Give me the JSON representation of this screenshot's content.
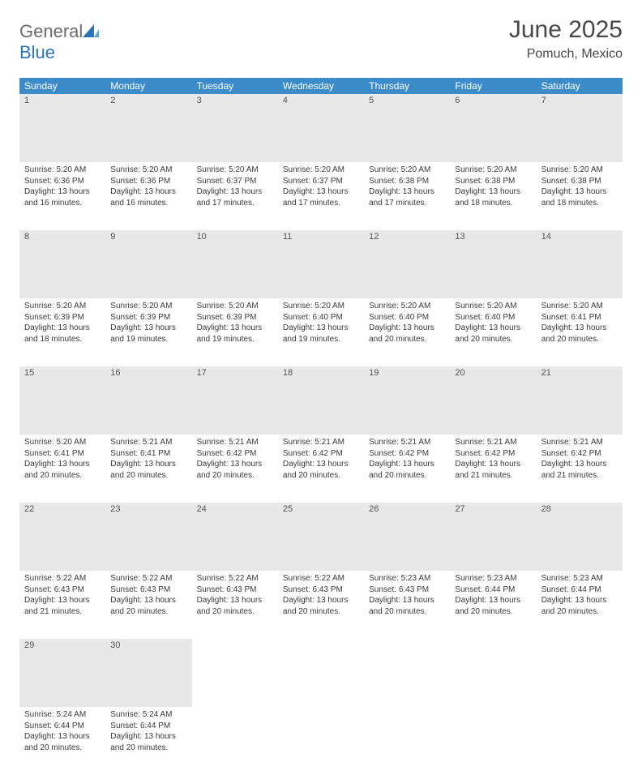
{
  "logo": {
    "general": "General",
    "blue": "Blue"
  },
  "title": "June 2025",
  "location": "Pomuch, Mexico",
  "header_color": "#3c8cc9",
  "accent_color": "#2a75bb",
  "daynum_bg": "#e8e8e8",
  "font_family": "Arial",
  "title_fontsize": 30,
  "location_fontsize": 16,
  "header_fontsize": 12,
  "body_fontsize": 10,
  "weekdays": [
    "Sunday",
    "Monday",
    "Tuesday",
    "Wednesday",
    "Thursday",
    "Friday",
    "Saturday"
  ],
  "weeks": [
    [
      {
        "n": "1",
        "sr": "Sunrise: 5:20 AM",
        "ss": "Sunset: 6:36 PM",
        "d1": "Daylight: 13 hours",
        "d2": "and 16 minutes."
      },
      {
        "n": "2",
        "sr": "Sunrise: 5:20 AM",
        "ss": "Sunset: 6:36 PM",
        "d1": "Daylight: 13 hours",
        "d2": "and 16 minutes."
      },
      {
        "n": "3",
        "sr": "Sunrise: 5:20 AM",
        "ss": "Sunset: 6:37 PM",
        "d1": "Daylight: 13 hours",
        "d2": "and 17 minutes."
      },
      {
        "n": "4",
        "sr": "Sunrise: 5:20 AM",
        "ss": "Sunset: 6:37 PM",
        "d1": "Daylight: 13 hours",
        "d2": "and 17 minutes."
      },
      {
        "n": "5",
        "sr": "Sunrise: 5:20 AM",
        "ss": "Sunset: 6:38 PM",
        "d1": "Daylight: 13 hours",
        "d2": "and 17 minutes."
      },
      {
        "n": "6",
        "sr": "Sunrise: 5:20 AM",
        "ss": "Sunset: 6:38 PM",
        "d1": "Daylight: 13 hours",
        "d2": "and 18 minutes."
      },
      {
        "n": "7",
        "sr": "Sunrise: 5:20 AM",
        "ss": "Sunset: 6:38 PM",
        "d1": "Daylight: 13 hours",
        "d2": "and 18 minutes."
      }
    ],
    [
      {
        "n": "8",
        "sr": "Sunrise: 5:20 AM",
        "ss": "Sunset: 6:39 PM",
        "d1": "Daylight: 13 hours",
        "d2": "and 18 minutes."
      },
      {
        "n": "9",
        "sr": "Sunrise: 5:20 AM",
        "ss": "Sunset: 6:39 PM",
        "d1": "Daylight: 13 hours",
        "d2": "and 19 minutes."
      },
      {
        "n": "10",
        "sr": "Sunrise: 5:20 AM",
        "ss": "Sunset: 6:39 PM",
        "d1": "Daylight: 13 hours",
        "d2": "and 19 minutes."
      },
      {
        "n": "11",
        "sr": "Sunrise: 5:20 AM",
        "ss": "Sunset: 6:40 PM",
        "d1": "Daylight: 13 hours",
        "d2": "and 19 minutes."
      },
      {
        "n": "12",
        "sr": "Sunrise: 5:20 AM",
        "ss": "Sunset: 6:40 PM",
        "d1": "Daylight: 13 hours",
        "d2": "and 20 minutes."
      },
      {
        "n": "13",
        "sr": "Sunrise: 5:20 AM",
        "ss": "Sunset: 6:40 PM",
        "d1": "Daylight: 13 hours",
        "d2": "and 20 minutes."
      },
      {
        "n": "14",
        "sr": "Sunrise: 5:20 AM",
        "ss": "Sunset: 6:41 PM",
        "d1": "Daylight: 13 hours",
        "d2": "and 20 minutes."
      }
    ],
    [
      {
        "n": "15",
        "sr": "Sunrise: 5:20 AM",
        "ss": "Sunset: 6:41 PM",
        "d1": "Daylight: 13 hours",
        "d2": "and 20 minutes."
      },
      {
        "n": "16",
        "sr": "Sunrise: 5:21 AM",
        "ss": "Sunset: 6:41 PM",
        "d1": "Daylight: 13 hours",
        "d2": "and 20 minutes."
      },
      {
        "n": "17",
        "sr": "Sunrise: 5:21 AM",
        "ss": "Sunset: 6:42 PM",
        "d1": "Daylight: 13 hours",
        "d2": "and 20 minutes."
      },
      {
        "n": "18",
        "sr": "Sunrise: 5:21 AM",
        "ss": "Sunset: 6:42 PM",
        "d1": "Daylight: 13 hours",
        "d2": "and 20 minutes."
      },
      {
        "n": "19",
        "sr": "Sunrise: 5:21 AM",
        "ss": "Sunset: 6:42 PM",
        "d1": "Daylight: 13 hours",
        "d2": "and 20 minutes."
      },
      {
        "n": "20",
        "sr": "Sunrise: 5:21 AM",
        "ss": "Sunset: 6:42 PM",
        "d1": "Daylight: 13 hours",
        "d2": "and 21 minutes."
      },
      {
        "n": "21",
        "sr": "Sunrise: 5:21 AM",
        "ss": "Sunset: 6:42 PM",
        "d1": "Daylight: 13 hours",
        "d2": "and 21 minutes."
      }
    ],
    [
      {
        "n": "22",
        "sr": "Sunrise: 5:22 AM",
        "ss": "Sunset: 6:43 PM",
        "d1": "Daylight: 13 hours",
        "d2": "and 21 minutes."
      },
      {
        "n": "23",
        "sr": "Sunrise: 5:22 AM",
        "ss": "Sunset: 6:43 PM",
        "d1": "Daylight: 13 hours",
        "d2": "and 20 minutes."
      },
      {
        "n": "24",
        "sr": "Sunrise: 5:22 AM",
        "ss": "Sunset: 6:43 PM",
        "d1": "Daylight: 13 hours",
        "d2": "and 20 minutes."
      },
      {
        "n": "25",
        "sr": "Sunrise: 5:22 AM",
        "ss": "Sunset: 6:43 PM",
        "d1": "Daylight: 13 hours",
        "d2": "and 20 minutes."
      },
      {
        "n": "26",
        "sr": "Sunrise: 5:23 AM",
        "ss": "Sunset: 6:43 PM",
        "d1": "Daylight: 13 hours",
        "d2": "and 20 minutes."
      },
      {
        "n": "27",
        "sr": "Sunrise: 5:23 AM",
        "ss": "Sunset: 6:44 PM",
        "d1": "Daylight: 13 hours",
        "d2": "and 20 minutes."
      },
      {
        "n": "28",
        "sr": "Sunrise: 5:23 AM",
        "ss": "Sunset: 6:44 PM",
        "d1": "Daylight: 13 hours",
        "d2": "and 20 minutes."
      }
    ],
    [
      {
        "n": "29",
        "sr": "Sunrise: 5:24 AM",
        "ss": "Sunset: 6:44 PM",
        "d1": "Daylight: 13 hours",
        "d2": "and 20 minutes."
      },
      {
        "n": "30",
        "sr": "Sunrise: 5:24 AM",
        "ss": "Sunset: 6:44 PM",
        "d1": "Daylight: 13 hours",
        "d2": "and 20 minutes."
      },
      null,
      null,
      null,
      null,
      null
    ]
  ]
}
